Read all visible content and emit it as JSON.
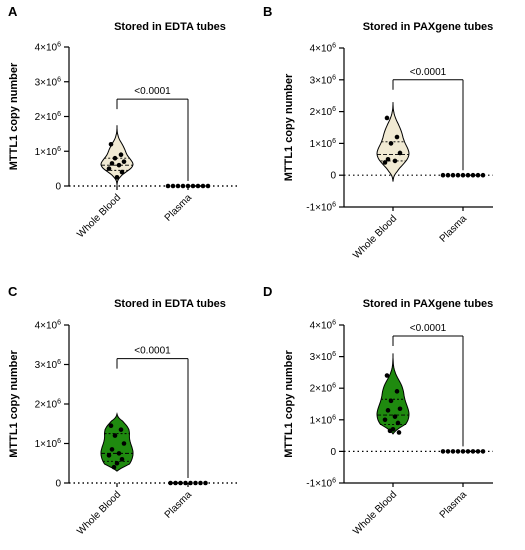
{
  "chart_data": [
    {
      "type": "violin",
      "panel_letter": "A",
      "title": "Stored in EDTA tubes",
      "ylabel": "MTTL1 copy number",
      "categories": [
        "Whole Blood",
        "Plasma"
      ],
      "ylim": [
        0,
        4000000
      ],
      "yticks": [
        0,
        1000000,
        2000000,
        3000000,
        4000000
      ],
      "ytick_labels": [
        {
          "base": "0",
          "exp": ""
        },
        {
          "base": "1×10",
          "exp": "6"
        },
        {
          "base": "2×10",
          "exp": "6"
        },
        {
          "base": "3×10",
          "exp": "6"
        },
        {
          "base": "4×10",
          "exp": "6"
        }
      ],
      "fill_color": "#f1ead3",
      "series": [
        {
          "values": [
            1200000,
            900000,
            800000,
            700000,
            650000,
            600000,
            500000,
            400000,
            250000
          ]
        },
        {
          "values": [
            0,
            0,
            0,
            0,
            0,
            0,
            0,
            0,
            0
          ]
        }
      ],
      "violin": {
        "min": 0,
        "max": 1750000,
        "median": 600000,
        "q1": 450000,
        "q3": 800000
      },
      "significance": "<0.0001",
      "sig_level": 2500000
    },
    {
      "type": "violin",
      "panel_letter": "B",
      "title": "Stored in PAXgene tubes",
      "ylabel": "MTTL1 copy number",
      "categories": [
        "Whole Blood",
        "Plasma"
      ],
      "ylim": [
        -1000000,
        4000000
      ],
      "yticks": [
        -1000000,
        0,
        1000000,
        2000000,
        3000000,
        4000000
      ],
      "ytick_labels": [
        {
          "base": "-1×10",
          "exp": "6"
        },
        {
          "base": "0",
          "exp": ""
        },
        {
          "base": "1×10",
          "exp": "6"
        },
        {
          "base": "2×10",
          "exp": "6"
        },
        {
          "base": "3×10",
          "exp": "6"
        },
        {
          "base": "4×10",
          "exp": "6"
        }
      ],
      "fill_color": "#f1ead3",
      "series": [
        {
          "values": [
            1800000,
            1200000,
            1000000,
            700000,
            500000,
            450000,
            400000
          ]
        },
        {
          "values": [
            0,
            0,
            0,
            0,
            0,
            0,
            0,
            0,
            0
          ]
        }
      ],
      "violin": {
        "min": -200000,
        "max": 2300000,
        "median": 650000,
        "q1": 450000,
        "q3": 1050000
      },
      "significance": "<0.0001",
      "sig_level": 3000000
    },
    {
      "type": "violin",
      "panel_letter": "C",
      "title": "Stored in EDTA tubes",
      "ylabel": "MTTL1 copy number",
      "categories": [
        "Whole Blood",
        "Plasma"
      ],
      "ylim": [
        0,
        4000000
      ],
      "yticks": [
        0,
        1000000,
        2000000,
        3000000,
        4000000
      ],
      "ytick_labels": [
        {
          "base": "0",
          "exp": ""
        },
        {
          "base": "1×10",
          "exp": "6"
        },
        {
          "base": "2×10",
          "exp": "6"
        },
        {
          "base": "3×10",
          "exp": "6"
        },
        {
          "base": "4×10",
          "exp": "6"
        }
      ],
      "fill_color": "#1f8a0f",
      "series": [
        {
          "values": [
            1450000,
            1350000,
            1200000,
            1000000,
            850000,
            750000,
            700000,
            600000,
            500000,
            400000
          ]
        },
        {
          "values": [
            0,
            0,
            0,
            0,
            0,
            0,
            0,
            0
          ]
        }
      ],
      "violin": {
        "min": 300000,
        "max": 1750000,
        "median": 750000,
        "q1": 550000,
        "q3": 1250000
      },
      "significance": "<0.0001",
      "sig_level": 3150000
    },
    {
      "type": "violin",
      "panel_letter": "D",
      "title": "Stored in PAXgene tubes",
      "ylabel": "MTTL1 copy number",
      "categories": [
        "Whole Blood",
        "Plasma"
      ],
      "ylim": [
        -1000000,
        4000000
      ],
      "yticks": [
        -1000000,
        0,
        1000000,
        2000000,
        3000000,
        4000000
      ],
      "ytick_labels": [
        {
          "base": "-1×10",
          "exp": "6"
        },
        {
          "base": "0",
          "exp": ""
        },
        {
          "base": "1×10",
          "exp": "6"
        },
        {
          "base": "2×10",
          "exp": "6"
        },
        {
          "base": "3×10",
          "exp": "6"
        },
        {
          "base": "4×10",
          "exp": "6"
        }
      ],
      "fill_color": "#1f8a0f",
      "series": [
        {
          "values": [
            2400000,
            1900000,
            1600000,
            1350000,
            1300000,
            1100000,
            1000000,
            900000,
            700000,
            650000,
            600000
          ]
        },
        {
          "values": [
            0,
            0,
            0,
            0,
            0,
            0,
            0,
            0,
            0
          ]
        }
      ],
      "violin": {
        "min": 550000,
        "max": 3100000,
        "median": 1150000,
        "q1": 850000,
        "q3": 1650000
      },
      "significance": "<0.0001",
      "sig_level": 3650000
    }
  ]
}
